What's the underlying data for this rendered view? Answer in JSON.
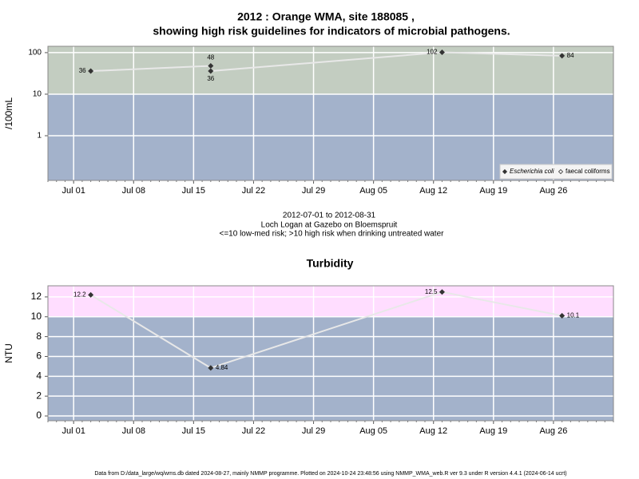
{
  "chart_data": [
    {
      "type": "line",
      "title": [
        "2012 : Orange WMA, site 188085 ,",
        "showing high risk guidelines for indicators of microbial pathogens."
      ],
      "ylabel": "/100mL",
      "log_scale": true,
      "x": [
        "Jul 03",
        "Jul 17",
        "Jul 17",
        "Aug 13",
        "Aug 27"
      ],
      "series": [
        {
          "name": "Escherichia coli",
          "color": "#333333",
          "marker": "filled",
          "values": [
            36,
            48,
            36,
            102,
            84
          ]
        }
      ],
      "legend": [
        {
          "label": "Escherichia coli",
          "marker": "filled"
        },
        {
          "label": "faecal coliforms",
          "marker": "open"
        }
      ],
      "legend_corner": "lower right",
      "xlim": [
        "Jun 28",
        "Sep 02"
      ],
      "xticks": [
        "Jul 01",
        "Jul 08",
        "Jul 15",
        "Jul 22",
        "Jul 29",
        "Aug 05",
        "Aug 12",
        "Aug 19",
        "Aug 26"
      ],
      "ylim": [
        0.084,
        142
      ],
      "yticks": [
        1,
        10,
        100
      ],
      "threshold": 10,
      "color_above": "#c3cdc1",
      "color_below": "#a3b2cb",
      "line_color": "#e8e8e8",
      "grid": true,
      "annotations": [
        "2012-07-01 to 2012-08-31",
        "Loch Logan at Gazebo on Bloemspruit",
        "<=10 low-med risk; >10 high risk when drinking untreated water"
      ]
    },
    {
      "type": "line",
      "title": [
        "Turbidity"
      ],
      "ylabel": "NTU",
      "log_scale": false,
      "x": [
        "Jul 03",
        "Jul 17",
        "Aug 13",
        "Aug 27"
      ],
      "series": [
        {
          "name": "Turbidity",
          "color": "#333333",
          "marker": "filled",
          "values": [
            12.2,
            4.84,
            12.5,
            10.1
          ]
        }
      ],
      "xlim": [
        "Jun 28",
        "Sep 02"
      ],
      "xticks": [
        "Jul 01",
        "Jul 08",
        "Jul 15",
        "Jul 22",
        "Jul 29",
        "Aug 05",
        "Aug 12",
        "Aug 19",
        "Aug 26"
      ],
      "ylim": [
        -0.48,
        13.12
      ],
      "yticks": [
        0,
        2,
        4,
        6,
        8,
        10,
        12
      ],
      "threshold": 10,
      "color_above": "#ffddff",
      "color_below": "#a3b2cb",
      "line_color": "#e8e8e8",
      "grid": true
    }
  ],
  "footer": "Data from D:/data_large/wq/wms.db dated 2024-08-27, mainly NMMP programme. Plotted on 2024-10-24 23:48:56 using NMMP_WMA_web.R ver 9.3 under R version 4.4.1 (2024-06-14 ucrt)"
}
